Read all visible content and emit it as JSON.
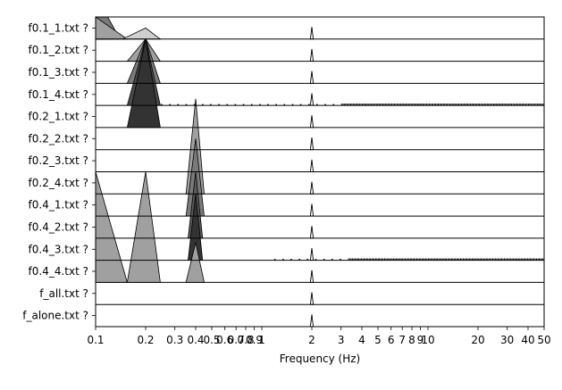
{
  "chart_data": {
    "type": "area",
    "xlabel": "Frequency (Hz)",
    "ylabel": "",
    "title": "",
    "xscale": "log",
    "xlim": [
      0.1,
      50
    ],
    "grid": false,
    "rows": [
      "f0.1_1.txt ?",
      "f0.1_2.txt ?",
      "f0.1_3.txt ?",
      "f0.1_4.txt ?",
      "f0.2_1.txt ?",
      "f0.2_2.txt ?",
      "f0.2_3.txt ?",
      "f0.2_4.txt ?",
      "f0.4_1.txt ?",
      "f0.4_2.txt ?",
      "f0.4_3.txt ?",
      "f0.4_4.txt ?",
      "f_all.txt ?",
      "f_alone.txt ?"
    ],
    "x_ticks": [
      {
        "value": 0.1,
        "label": "0.1"
      },
      {
        "value": 0.2,
        "label": "0.2"
      },
      {
        "value": 0.3,
        "label": "0.3"
      },
      {
        "value": 0.4,
        "label": "0.4"
      },
      {
        "value": 0.5,
        "label": "0.5"
      },
      {
        "value": 0.6,
        "label": "0.6"
      },
      {
        "value": 0.7,
        "label": "0.7"
      },
      {
        "value": 0.8,
        "label": "0.8"
      },
      {
        "value": 0.9,
        "label": "0.9"
      },
      {
        "value": 1,
        "label": "1"
      },
      {
        "value": 2,
        "label": "2"
      },
      {
        "value": 3,
        "label": "3"
      },
      {
        "value": 4,
        "label": "4"
      },
      {
        "value": 5,
        "label": "5"
      },
      {
        "value": 6,
        "label": "6"
      },
      {
        "value": 7,
        "label": "7"
      },
      {
        "value": 8,
        "label": "8"
      },
      {
        "value": 9,
        "label": "9"
      },
      {
        "value": 10,
        "label": "10"
      },
      {
        "value": 20,
        "label": "20"
      },
      {
        "value": 30,
        "label": "30"
      },
      {
        "value": 40,
        "label": "40"
      },
      {
        "value": 50,
        "label": "50"
      }
    ],
    "peaks": [
      {
        "row": 0,
        "f0": 0.1,
        "f1": 0.115,
        "fp": 0.1,
        "height": 3.0,
        "color": "#333333"
      },
      {
        "row": 0,
        "f0": 0.1,
        "f1": 0.125,
        "fp": 0.1,
        "height": 2.0,
        "color": "#5a5a5a"
      },
      {
        "row": 0,
        "f0": 0.1,
        "f1": 0.14,
        "fp": 0.1,
        "height": 1.0,
        "color": "#7a7a7a"
      },
      {
        "row": 0,
        "f0": 0.1,
        "f1": 0.155,
        "fp": 0.1,
        "height": 0.0,
        "color": "#a0a0a0"
      },
      {
        "row": 0,
        "f0": 0.145,
        "f1": 0.245,
        "fp": 0.2,
        "height": -0.5,
        "color": "#cfcfcf"
      },
      {
        "row": 1,
        "f0": 0.155,
        "f1": 0.245,
        "fp": 0.2,
        "height": 0.0,
        "color": "#a0a0a0"
      },
      {
        "row": 2,
        "f0": 0.155,
        "f1": 0.245,
        "fp": 0.2,
        "height": 1.0,
        "color": "#7a7a7a"
      },
      {
        "row": 3,
        "f0": 0.155,
        "f1": 0.245,
        "fp": 0.2,
        "height": 2.0,
        "color": "#4a4a4a"
      },
      {
        "row": 4,
        "f0": 0.155,
        "f1": 0.245,
        "fp": 0.2,
        "height": 3.0,
        "color": "#333333"
      },
      {
        "row": 7,
        "f0": 0.35,
        "f1": 0.45,
        "fp": 0.4,
        "height": 3.3,
        "color": "#a0a0a0"
      },
      {
        "row": 8,
        "f0": 0.35,
        "f1": 0.45,
        "fp": 0.4,
        "height": 2.5,
        "color": "#7a7a7a"
      },
      {
        "row": 9,
        "f0": 0.36,
        "f1": 0.44,
        "fp": 0.4,
        "height": 2.0,
        "color": "#5a5a5a"
      },
      {
        "row": 10,
        "f0": 0.36,
        "f1": 0.44,
        "fp": 0.4,
        "height": 2.0,
        "color": "#333333"
      },
      {
        "row": 11,
        "f0": 0.155,
        "f1": 0.245,
        "fp": 0.2,
        "height": 4.0,
        "color": "#a0a0a0"
      },
      {
        "row": 11,
        "f0": 0.1,
        "f1": 0.155,
        "fp": 0.1,
        "height": 4.0,
        "color": "#a0a0a0"
      },
      {
        "row": 11,
        "f0": 0.35,
        "f1": 0.45,
        "fp": 0.4,
        "height": 0.8,
        "color": "#a0a0a0"
      }
    ],
    "spike_2hz": {
      "frequency": 2.0,
      "height": 0.55
    },
    "noise_rows": [
      {
        "row": 3,
        "from": 0.25,
        "to": 50
      },
      {
        "row": 10,
        "from": 1.2,
        "to": 50
      }
    ]
  }
}
